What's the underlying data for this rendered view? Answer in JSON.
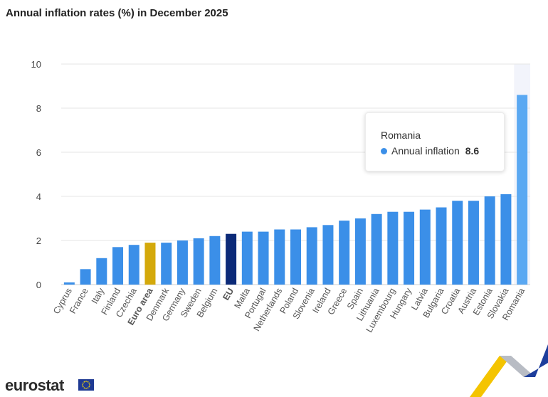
{
  "title": "Annual inflation rates (%) in December 2025",
  "chart_data": {
    "type": "bar",
    "title": "Annual inflation rates (%) in December 2025",
    "xlabel": "",
    "ylabel": "",
    "ylim": [
      0,
      10
    ],
    "yticks": [
      0,
      2,
      4,
      6,
      8,
      10
    ],
    "grid": true,
    "categories": [
      "Cyprus",
      "France",
      "Italy",
      "Finland",
      "Czechia",
      "Euro area",
      "Denmark",
      "Germany",
      "Sweden",
      "Belgium",
      "EU",
      "Malta",
      "Portugal",
      "Netherlands",
      "Poland",
      "Slovenia",
      "Ireland",
      "Greece",
      "Spain",
      "Lithuania",
      "Luxembourg",
      "Hungary",
      "Latvia",
      "Bulgaria",
      "Croatia",
      "Austria",
      "Estonia",
      "Slovakia",
      "Romania"
    ],
    "series": [
      {
        "name": "Annual inflation",
        "values": [
          0.1,
          0.7,
          1.2,
          1.7,
          1.8,
          1.9,
          1.9,
          2.0,
          2.1,
          2.2,
          2.3,
          2.4,
          2.4,
          2.5,
          2.5,
          2.6,
          2.7,
          2.9,
          3.0,
          3.2,
          3.3,
          3.3,
          3.4,
          3.5,
          3.8,
          3.8,
          4.0,
          4.1,
          8.6
        ]
      }
    ],
    "colors": {
      "default": "#3b8fe8",
      "Euro area": "#d4a90b",
      "EU": "#0c2a78",
      "highlight": "#5aa8f2",
      "grid": "#e6e6e6",
      "hover_band": "#f2f4fb"
    },
    "bold_categories": [
      "Euro area",
      "EU"
    ],
    "highlighted_category": "Romania"
  },
  "tooltip": {
    "title": "Romania",
    "series_name": "Annual inflation",
    "value": "8.6"
  },
  "footer": {
    "logo_text": "eurostat"
  }
}
